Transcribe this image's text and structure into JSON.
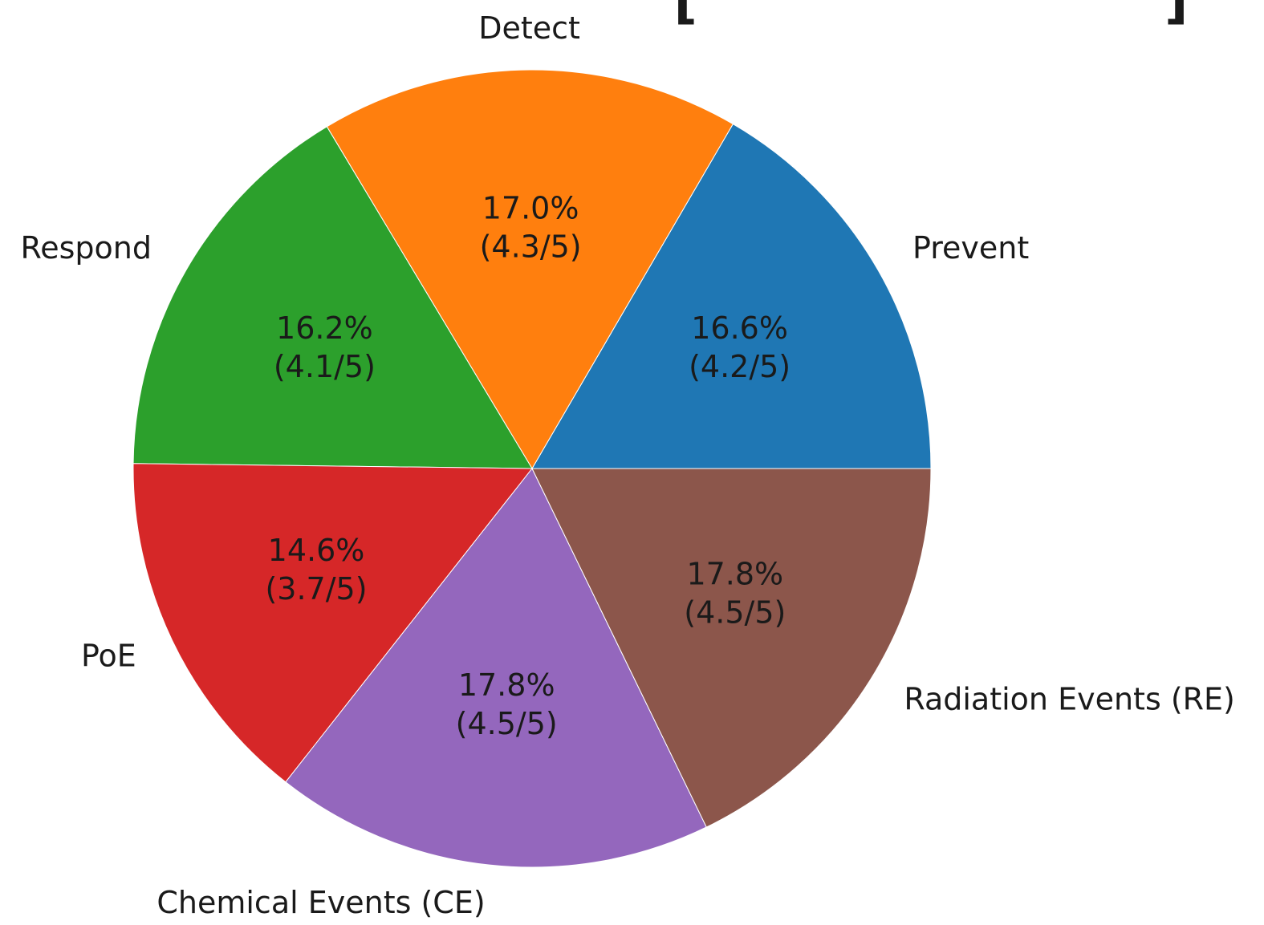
{
  "chart_data": {
    "type": "pie",
    "title_fragment": "[ ]",
    "start_angle_deg": 0,
    "direction": "counterclockwise",
    "slices": [
      {
        "label": "Prevent",
        "percent": 16.6,
        "score_text": "(4.2/5)",
        "percent_text": "16.6%",
        "color": "#1f77b4"
      },
      {
        "label": "Detect",
        "percent": 17.0,
        "score_text": "(4.3/5)",
        "percent_text": "17.0%",
        "color": "#ff7f0e"
      },
      {
        "label": "Respond",
        "percent": 16.2,
        "score_text": "(4.1/5)",
        "percent_text": "16.2%",
        "color": "#2ca02c"
      },
      {
        "label": "PoE",
        "percent": 14.6,
        "score_text": "(3.7/5)",
        "percent_text": "14.6%",
        "color": "#d62728"
      },
      {
        "label": "Chemical Events (CE)",
        "percent": 17.8,
        "score_text": "(4.5/5)",
        "percent_text": "17.8%",
        "color": "#9467bd"
      },
      {
        "label": "Radiation Events (RE)",
        "percent": 17.8,
        "score_text": "(4.5/5)",
        "percent_text": "17.8%",
        "color": "#8c564b"
      }
    ]
  }
}
